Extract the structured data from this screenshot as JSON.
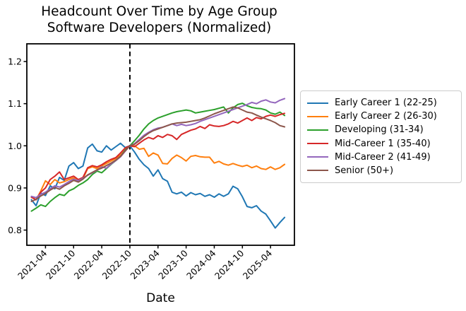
{
  "chart_data": {
    "type": "line",
    "title_lines": [
      "Headcount Over Time by Age Group",
      "Software Developers (Normalized)"
    ],
    "xlabel": "Date",
    "x_start": "2021-01",
    "x_end": "2025-07",
    "x_freq": "monthly",
    "xtick_labels": [
      "2021-04",
      "2021-10",
      "2022-04",
      "2022-10",
      "2023-04",
      "2023-10",
      "2024-04",
      "2024-10",
      "2025-04"
    ],
    "ytick_labels": [
      "0.8",
      "0.9",
      "1.0",
      "1.1",
      "1.2"
    ],
    "yticks": [
      0.8,
      0.9,
      1.0,
      1.1,
      1.2
    ],
    "ylim": [
      0.764,
      1.242
    ],
    "grid": false,
    "legend_position": "outside-right",
    "vline": {
      "x": "2022-10",
      "style": "dashed",
      "color": "#000000"
    },
    "series": [
      {
        "name": "Early Career 1 (22-25)",
        "color": "#1f77b4",
        "values": [
          0.872,
          0.858,
          0.888,
          0.882,
          0.905,
          0.898,
          0.925,
          0.918,
          0.952,
          0.96,
          0.946,
          0.952,
          0.995,
          1.004,
          0.988,
          0.985,
          1.0,
          0.99,
          0.998,
          1.006,
          0.996,
          1.0,
          0.985,
          0.968,
          0.955,
          0.946,
          0.928,
          0.943,
          0.922,
          0.916,
          0.89,
          0.886,
          0.89,
          0.881,
          0.889,
          0.884,
          0.887,
          0.88,
          0.884,
          0.878,
          0.886,
          0.88,
          0.886,
          0.904,
          0.898,
          0.879,
          0.856,
          0.853,
          0.858,
          0.845,
          0.838,
          0.822,
          0.805,
          0.818,
          0.83
        ]
      },
      {
        "name": "Early Career 2 (26-30)",
        "color": "#ff7f0e",
        "values": [
          0.878,
          0.872,
          0.893,
          0.917,
          0.908,
          0.92,
          0.912,
          0.915,
          0.92,
          0.924,
          0.916,
          0.922,
          0.946,
          0.95,
          0.946,
          0.952,
          0.958,
          0.964,
          0.97,
          0.978,
          0.99,
          1.0,
          1.0,
          0.992,
          0.994,
          0.975,
          0.983,
          0.978,
          0.958,
          0.957,
          0.97,
          0.978,
          0.972,
          0.964,
          0.975,
          0.977,
          0.974,
          0.973,
          0.973,
          0.959,
          0.963,
          0.957,
          0.954,
          0.958,
          0.954,
          0.951,
          0.954,
          0.948,
          0.952,
          0.946,
          0.944,
          0.95,
          0.944,
          0.948,
          0.956
        ]
      },
      {
        "name": "Developing (31-34)",
        "color": "#2ca02c",
        "values": [
          0.845,
          0.852,
          0.86,
          0.856,
          0.868,
          0.877,
          0.885,
          0.882,
          0.893,
          0.898,
          0.906,
          0.912,
          0.92,
          0.932,
          0.94,
          0.936,
          0.946,
          0.956,
          0.965,
          0.975,
          0.99,
          1.0,
          1.012,
          1.025,
          1.04,
          1.052,
          1.06,
          1.066,
          1.07,
          1.074,
          1.078,
          1.081,
          1.083,
          1.085,
          1.083,
          1.078,
          1.08,
          1.082,
          1.084,
          1.086,
          1.089,
          1.092,
          1.078,
          1.09,
          1.098,
          1.101,
          1.095,
          1.091,
          1.089,
          1.088,
          1.085,
          1.078,
          1.075,
          1.08,
          1.072
        ]
      },
      {
        "name": "Mid-Career 1 (35-40)",
        "color": "#d62728",
        "values": [
          0.878,
          0.872,
          0.89,
          0.9,
          0.92,
          0.928,
          0.938,
          0.92,
          0.924,
          0.928,
          0.92,
          0.925,
          0.948,
          0.953,
          0.95,
          0.955,
          0.962,
          0.968,
          0.972,
          0.983,
          0.995,
          1.0,
          0.998,
          1.006,
          1.014,
          1.02,
          1.016,
          1.024,
          1.02,
          1.027,
          1.024,
          1.015,
          1.027,
          1.032,
          1.037,
          1.04,
          1.046,
          1.041,
          1.05,
          1.047,
          1.046,
          1.048,
          1.052,
          1.058,
          1.054,
          1.06,
          1.066,
          1.06,
          1.067,
          1.064,
          1.07,
          1.073,
          1.07,
          1.074,
          1.077
        ]
      },
      {
        "name": "Mid-Career 2 (41-49)",
        "color": "#9467bd",
        "values": [
          0.88,
          0.877,
          0.885,
          0.89,
          0.898,
          0.905,
          0.902,
          0.908,
          0.915,
          0.921,
          0.917,
          0.923,
          0.93,
          0.936,
          0.942,
          0.95,
          0.947,
          0.957,
          0.965,
          0.974,
          0.987,
          1.0,
          1.005,
          1.015,
          1.025,
          1.032,
          1.038,
          1.042,
          1.044,
          1.048,
          1.052,
          1.048,
          1.051,
          1.048,
          1.05,
          1.053,
          1.058,
          1.062,
          1.066,
          1.07,
          1.074,
          1.078,
          1.082,
          1.086,
          1.09,
          1.094,
          1.098,
          1.103,
          1.1,
          1.106,
          1.109,
          1.104,
          1.102,
          1.108,
          1.112
        ]
      },
      {
        "name": "Senior (50+)",
        "color": "#8c564b",
        "values": [
          0.868,
          0.873,
          0.881,
          0.887,
          0.895,
          0.901,
          0.897,
          0.905,
          0.911,
          0.918,
          0.914,
          0.921,
          0.931,
          0.937,
          0.943,
          0.947,
          0.953,
          0.959,
          0.966,
          0.975,
          0.988,
          1.0,
          1.004,
          1.012,
          1.022,
          1.03,
          1.036,
          1.04,
          1.044,
          1.048,
          1.052,
          1.054,
          1.055,
          1.056,
          1.058,
          1.06,
          1.062,
          1.066,
          1.071,
          1.076,
          1.08,
          1.084,
          1.088,
          1.092,
          1.09,
          1.085,
          1.08,
          1.078,
          1.073,
          1.068,
          1.064,
          1.06,
          1.055,
          1.048,
          1.045
        ]
      }
    ]
  }
}
